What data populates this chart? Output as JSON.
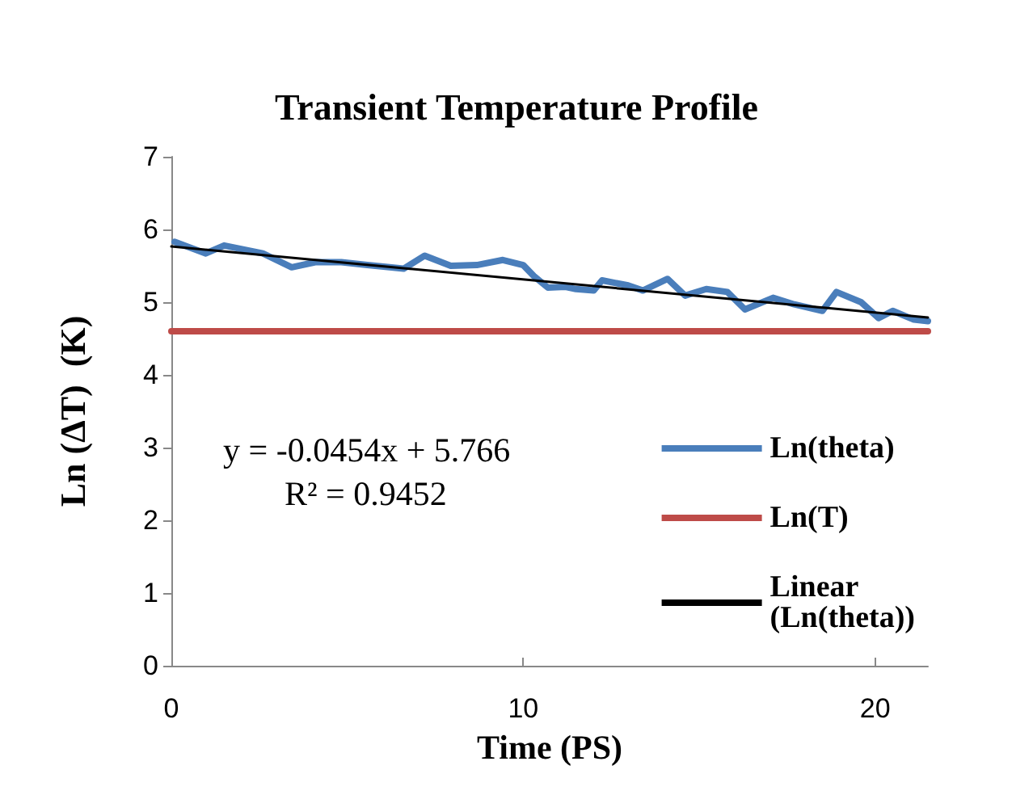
{
  "chart_data": {
    "type": "line",
    "title": "Transient Temperature Profile",
    "xlabel": "Time (PS)",
    "ylabel": "Ln (ΔT)  (K)",
    "xlim": [
      0,
      21.5
    ],
    "xticks": [
      0,
      10,
      20
    ],
    "ylim": [
      0,
      7
    ],
    "yticks": [
      0,
      1,
      2,
      3,
      4,
      5,
      6,
      7
    ],
    "grid": false,
    "legend": "right",
    "marker": "none",
    "annotations": [
      "y = -0.0454x + 5.766",
      "R² = 0.9452"
    ],
    "series": [
      {
        "name": "Ln(theta)",
        "color": "#4a7ebb",
        "x": [
          0.09,
          0.98,
          1.5,
          2.6,
          3.42,
          4.09,
          4.83,
          5.57,
          6.6,
          7.2,
          7.94,
          8.68,
          9.42,
          10.0,
          10.3,
          10.7,
          11.2,
          11.5,
          12.0,
          12.24,
          12.98,
          13.4,
          14.1,
          14.6,
          15.2,
          15.8,
          16.3,
          17.1,
          17.7,
          18.5,
          18.9,
          19.6,
          20.1,
          20.5,
          21.1,
          21.5
        ],
        "values": [
          5.83,
          5.67,
          5.78,
          5.67,
          5.48,
          5.55,
          5.55,
          5.51,
          5.46,
          5.64,
          5.5,
          5.51,
          5.58,
          5.51,
          5.36,
          5.2,
          5.21,
          5.18,
          5.16,
          5.3,
          5.23,
          5.16,
          5.32,
          5.09,
          5.18,
          5.14,
          4.9,
          5.06,
          4.97,
          4.88,
          5.14,
          5.0,
          4.78,
          4.88,
          4.76,
          4.74
        ]
      },
      {
        "name": "Ln(T)",
        "color": "#be4b48",
        "x": [
          0,
          21.5
        ],
        "values": [
          4.6,
          4.6
        ]
      },
      {
        "name": "Linear (Ln(theta))",
        "color": "#000000",
        "x": [
          0,
          21.5
        ],
        "values": [
          5.766,
          4.79
        ]
      }
    ]
  }
}
